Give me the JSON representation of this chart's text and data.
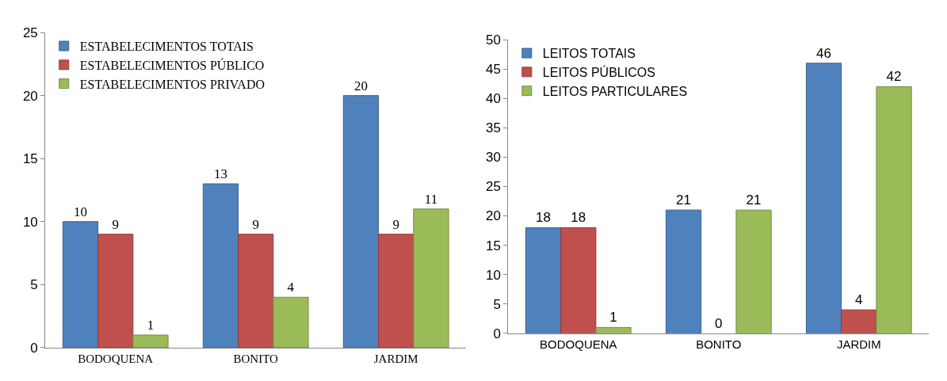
{
  "chart_data": [
    {
      "type": "bar",
      "categories": [
        "BODOQUENA",
        "BONITO",
        "JARDIM"
      ],
      "series": [
        {
          "name": "ESTABELECIMENTOS TOTAIS",
          "color": "#4f81bd",
          "values": [
            10,
            13,
            20
          ]
        },
        {
          "name": "ESTABELECIMENTOS PÚBLICO",
          "color": "#c0504d",
          "values": [
            9,
            9,
            9
          ]
        },
        {
          "name": "ESTABELECIMENTOS PRIVADO",
          "color": "#9bbb59",
          "values": [
            1,
            4,
            11
          ]
        }
      ],
      "ylim": [
        0,
        25
      ],
      "yticks": [
        0,
        5,
        10,
        15,
        20,
        25
      ],
      "data_labels": true,
      "legend": "top left"
    },
    {
      "type": "bar",
      "categories": [
        "BODOQUENA",
        "BONITO",
        "JARDIM"
      ],
      "series": [
        {
          "name": "LEITOS TOTAIS",
          "color": "#4f81bd",
          "values": [
            18,
            21,
            46
          ]
        },
        {
          "name": "LEITOS PÚBLICOS",
          "color": "#c0504d",
          "values": [
            18,
            0,
            4
          ]
        },
        {
          "name": "LEITOS PARTICULARES",
          "color": "#9bbb59",
          "values": [
            1,
            21,
            42
          ]
        }
      ],
      "ylim": [
        0,
        50
      ],
      "yticks": [
        0,
        5,
        10,
        15,
        20,
        25,
        30,
        35,
        40,
        45,
        50
      ],
      "data_labels": true,
      "legend": "top left"
    }
  ]
}
